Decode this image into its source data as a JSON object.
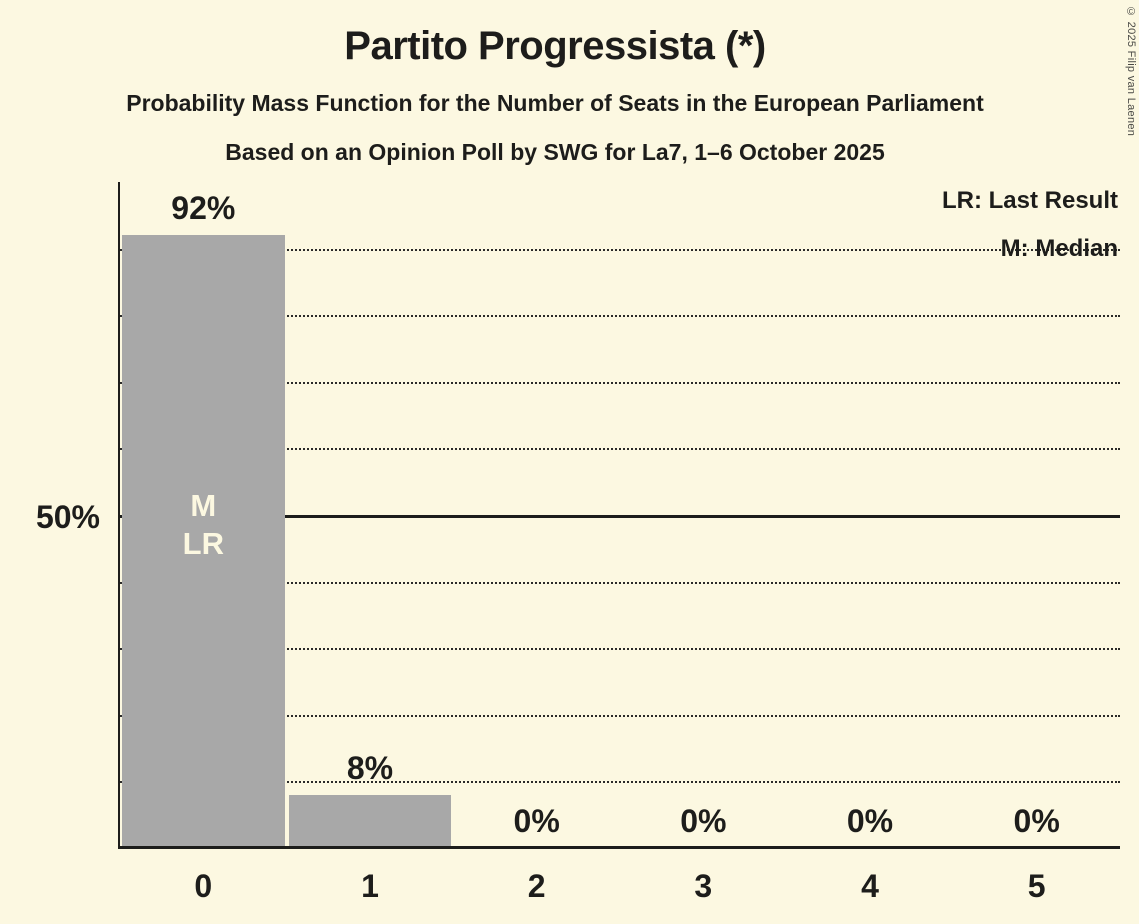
{
  "chart_data": {
    "type": "bar",
    "title": "Partito Progressista (*)",
    "subtitle1": "Probability Mass Function for the Number of Seats in the European Parliament",
    "subtitle2": "Based on an Opinion Poll by SWG for La7, 1–6 October 2025",
    "categories": [
      "0",
      "1",
      "2",
      "3",
      "4",
      "5"
    ],
    "values": [
      92,
      8,
      0,
      0,
      0,
      0
    ],
    "value_labels": [
      "92%",
      "8%",
      "0%",
      "0%",
      "0%",
      "0%"
    ],
    "xlabel": "",
    "ylabel": "",
    "ylim": [
      0,
      100
    ],
    "gridlines_percent": [
      10,
      20,
      30,
      40,
      50,
      60,
      70,
      80,
      90
    ],
    "y_reference_line": 50,
    "y_reference_label": "50%",
    "legend_lr": "LR: Last Result",
    "legend_m": "M: Median",
    "median_marker": "M",
    "last_result_marker": "LR",
    "median_bar_index": 0,
    "last_result_bar_index": 0,
    "legend_position": "top-right",
    "grid": "dotted-horizontal",
    "bar_color": "#a8a8a8",
    "background_color": "#fcf8e1",
    "text_color": "#1d1d1b",
    "copyright": "© 2025 Filip van Laenen"
  }
}
